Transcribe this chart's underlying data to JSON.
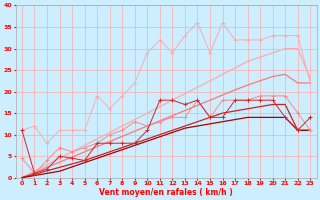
{
  "xlabel": "Vent moyen/en rafales ( km/h )",
  "background_color": "#cceeff",
  "grid_color": "#ffaaaa",
  "x": [
    0,
    1,
    2,
    3,
    4,
    5,
    6,
    7,
    8,
    9,
    10,
    11,
    12,
    13,
    14,
    15,
    16,
    17,
    18,
    19,
    20,
    21,
    22,
    23
  ],
  "line_pink_jagged": [
    11,
    12,
    8,
    11,
    11,
    11,
    19,
    16,
    19,
    22,
    29,
    32,
    29,
    33,
    36,
    29,
    36,
    32,
    32,
    32,
    33,
    33,
    33,
    22
  ],
  "line_pink_low": [
    4.5,
    1,
    4,
    7,
    6,
    7,
    8,
    10,
    11,
    13,
    12,
    13,
    14,
    14,
    18,
    14,
    18,
    18,
    18,
    19,
    19,
    19,
    15,
    11
  ],
  "line_red_jagged": [
    11,
    1,
    2,
    5,
    4.5,
    4,
    8,
    8,
    8,
    8,
    11,
    18,
    18,
    17,
    18,
    14,
    14,
    18,
    18,
    18,
    18,
    14,
    11,
    14
  ],
  "line_trend1": [
    0,
    1.5,
    3,
    4.5,
    6,
    7.5,
    9,
    10.5,
    12,
    13.5,
    15,
    16.5,
    18,
    19.5,
    21,
    22.5,
    24,
    25.5,
    27,
    28,
    29,
    30,
    30,
    23
  ],
  "line_trend2": [
    0,
    1.2,
    2.4,
    3.6,
    4.8,
    6,
    7.2,
    8.4,
    9.6,
    10.8,
    12,
    13.2,
    14.4,
    15.6,
    16.8,
    18,
    19.2,
    20.4,
    21.5,
    22.5,
    23.5,
    24,
    22,
    22
  ],
  "line_trend3": [
    0,
    0.8,
    1.6,
    2.4,
    3.2,
    4,
    5,
    6,
    7,
    8,
    9,
    10,
    11,
    12,
    13,
    14,
    15,
    15.5,
    16,
    16.5,
    17,
    17,
    11,
    11
  ],
  "line_trend4": [
    0,
    0.5,
    1,
    1.5,
    2.5,
    3.5,
    4.5,
    5.5,
    6.5,
    7.5,
    8.5,
    9.5,
    10.5,
    11.5,
    12,
    12.5,
    13,
    13.5,
    14,
    14,
    14,
    14,
    11,
    11
  ],
  "colors": {
    "pink_jagged": "#ffaaaa",
    "pink_low": "#ff8888",
    "red_jagged": "#dd2222",
    "trend1": "#ffaaaa",
    "trend2": "#ff7777",
    "trend3": "#cc2222",
    "trend4": "#aa0000"
  },
  "ylim": [
    0,
    40
  ],
  "yticks": [
    0,
    5,
    10,
    15,
    20,
    25,
    30,
    35,
    40
  ],
  "xticks": [
    0,
    1,
    2,
    3,
    4,
    5,
    6,
    7,
    8,
    9,
    10,
    11,
    12,
    13,
    14,
    15,
    16,
    17,
    18,
    19,
    20,
    21,
    22,
    23
  ]
}
